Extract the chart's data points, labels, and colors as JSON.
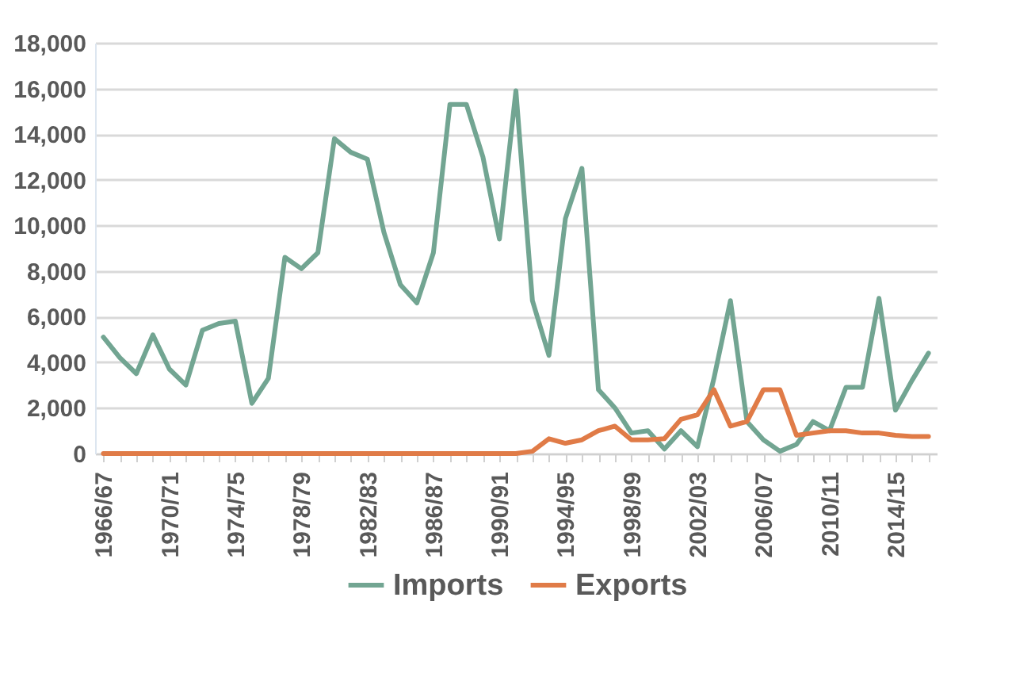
{
  "chart_data": {
    "type": "line",
    "categories": [
      "1966/67",
      null,
      null,
      null,
      "1970/71",
      null,
      null,
      null,
      "1974/75",
      null,
      null,
      null,
      "1978/79",
      null,
      null,
      null,
      "1982/83",
      null,
      null,
      null,
      "1986/87",
      null,
      null,
      null,
      "1990/91",
      null,
      null,
      null,
      "1994/95",
      null,
      null,
      null,
      "1998/99",
      null,
      null,
      null,
      "2002/03",
      null,
      null,
      null,
      "2006/07",
      null,
      null,
      null,
      "2010/11",
      null,
      null,
      null,
      "2014/15",
      null,
      null
    ],
    "series": [
      {
        "name": "Imports",
        "color": "#72a592",
        "values": [
          5100,
          4200,
          3500,
          5200,
          3700,
          3000,
          5400,
          5700,
          5800,
          2200,
          3300,
          8600,
          8100,
          8800,
          13800,
          13200,
          12900,
          9700,
          7400,
          6600,
          8800,
          15300,
          15300,
          13000,
          9400,
          15900,
          6700,
          4300,
          10300,
          12500,
          2800,
          2000,
          900,
          1000,
          200,
          1000,
          300,
          3300,
          6700,
          1400,
          600,
          100,
          400,
          1400,
          1000,
          2900,
          2900,
          6800,
          1900,
          3200,
          4400
        ]
      },
      {
        "name": "Exports",
        "color": "#e07b47",
        "values": [
          0,
          0,
          0,
          0,
          0,
          0,
          0,
          0,
          0,
          0,
          0,
          0,
          0,
          0,
          0,
          0,
          0,
          0,
          0,
          0,
          0,
          0,
          0,
          0,
          0,
          0,
          100,
          650,
          450,
          600,
          1000,
          1200,
          600,
          600,
          650,
          1500,
          1700,
          2800,
          1200,
          1400,
          2800,
          2800,
          800,
          900,
          1000,
          1000,
          900,
          900,
          800,
          750,
          750
        ]
      }
    ],
    "ylim": [
      0,
      18000
    ],
    "yticks": [
      0,
      {
        "value": 2000,
        "label": "2,000"
      },
      {
        "value": 4000,
        "label": "4,000"
      },
      {
        "value": 6000,
        "label": "6,000"
      },
      {
        "value": 8000,
        "label": "8,000"
      },
      {
        "value": 10000,
        "label": "10,000"
      },
      {
        "value": 12000,
        "label": "12,000"
      },
      {
        "value": 14000,
        "label": "14,000"
      },
      {
        "value": 16000,
        "label": "16,000"
      },
      {
        "value": 18000,
        "label": "18,000"
      }
    ],
    "grid": "y",
    "legend": "bottom",
    "line_style": "solid",
    "marker": "none"
  }
}
